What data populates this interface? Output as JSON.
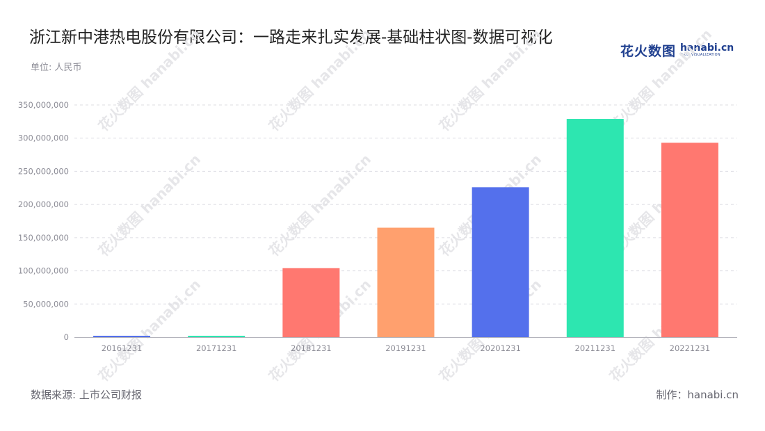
{
  "header": {
    "title": "浙江新中港热电股份有限公司：一路走来扎实发展-基础柱状图-数据可视化",
    "unit": "单位: 人民币"
  },
  "logo": {
    "cn": "花火数图",
    "en": "hanabi.cn",
    "tagline": "DATA VISUALIZATION",
    "color": "#1f3f8f"
  },
  "footer": {
    "source": "数据来源: 上市公司财报",
    "credit": "制作：hanabi.cn"
  },
  "watermark": {
    "text": "花火数图 hanabi.cn"
  },
  "chart_data": {
    "type": "bar",
    "categories": [
      "20161231",
      "20171231",
      "20181231",
      "20191231",
      "20201231",
      "20211231",
      "20221231"
    ],
    "values": [
      1200000,
      2000000,
      104000000,
      165000000,
      226000000,
      329000000,
      293000000
    ],
    "colors": [
      "#5470ec",
      "#2de6b0",
      "#ff7870",
      "#ffa06e",
      "#5470ec",
      "#2de6b0",
      "#ff7870"
    ],
    "ylim": [
      0,
      350000000
    ],
    "yticks": [
      0,
      50000000,
      100000000,
      150000000,
      200000000,
      250000000,
      300000000,
      350000000
    ],
    "ytick_labels": [
      "0",
      "50,000,000",
      "100,000,000",
      "150,000,000",
      "200,000,000",
      "250,000,000",
      "300,000,000",
      "350,000,000"
    ],
    "grid": true,
    "xlabel": "",
    "ylabel": ""
  }
}
